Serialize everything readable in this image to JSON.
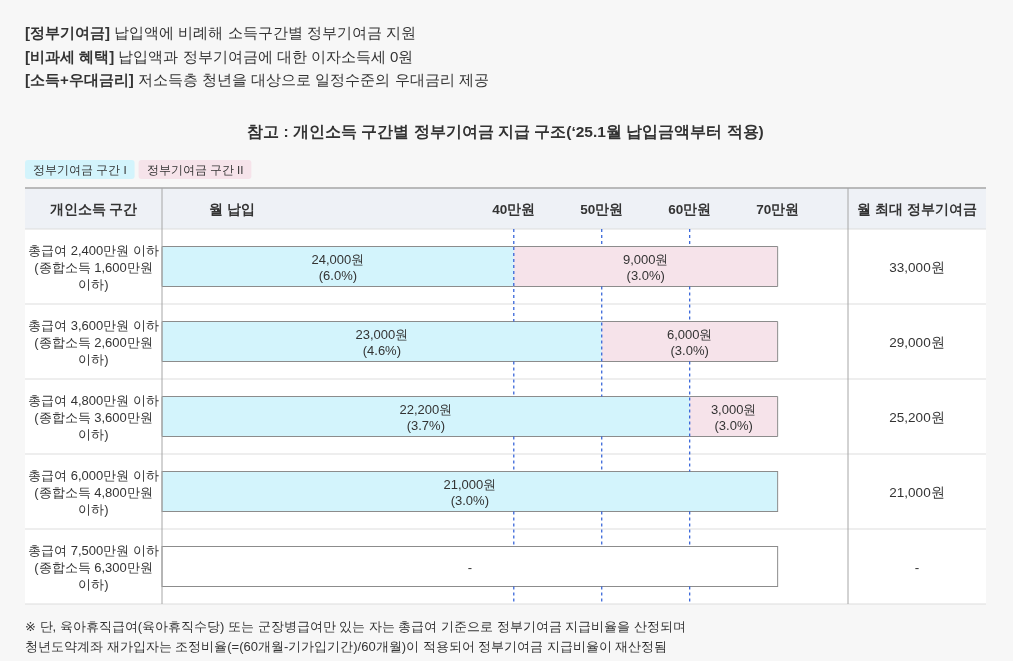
{
  "chart_data": {
    "type": "bar",
    "orientation": "horizontal",
    "stacked": true,
    "title": "참고 : 개인소득 구간별 정부기여금 지급 구조(‘25.1월 납입금액부터 적용)",
    "xlabel": "월 납입",
    "ylabel": "개인소득 구간",
    "categories": [
      "총급여 2,400만원 이하 (종합소득 1,600만원 이하)",
      "총급여 3,600만원 이하 (종합소득 2,600만원 이하)",
      "총급여 4,800만원 이하 (종합소득 3,600만원 이하)",
      "총급여 6,000만원 이하 (종합소득 4,800만원 이하)",
      "총급여 7,500만원 이하 (종합소득 6,300만원 이하)"
    ],
    "series": [
      {
        "name": "정부기여금 구간 I",
        "color": "#d3f4fc",
        "values": [
          40,
          50,
          60,
          70,
          null
        ]
      },
      {
        "name": "정부기여금 구간 II",
        "color": "#f6e3ea",
        "values": [
          30,
          20,
          10,
          null,
          null
        ]
      },
      {
        "color": "#ffffff",
        "values": [
          null,
          null,
          null,
          null,
          70
        ]
      }
    ],
    "xlim": [
      0,
      78
    ],
    "xticks": [
      {
        "value": 40,
        "label": "40만원"
      },
      {
        "value": 50,
        "label": "50만원"
      },
      {
        "value": 60,
        "label": "60만원"
      },
      {
        "value": 70,
        "label": "70만원"
      }
    ],
    "ref_lines": [
      {
        "axis": "x",
        "value": 40,
        "color": "#2a5bd7",
        "line_style": "dashed"
      },
      {
        "axis": "x",
        "value": 50,
        "color": "#2a5bd7",
        "line_style": "dashed"
      },
      {
        "axis": "x",
        "value": 60,
        "color": "#2a5bd7",
        "line_style": "dashed"
      }
    ],
    "legend": "top left",
    "annotations": [
      "**[정부기여금]** 납입액에 비례해 소득구간별 정부기여금 지원",
      "**[비과세 혜택]** 납입액과 정부기여금에 대한 이자소득세 0원",
      "**[소득+우대금리]** 저소득층 청년을 대상으로 일정수준의 우대금리 제공",
      "월 최대 정부기여금",
      "24,000원 (6.0%)",
      "9,000원 (3.0%)",
      "33,000원",
      "23,000원 (4.6%)",
      "6,000원 (3.0%)",
      "29,000원",
      "22,200원 (3.7%)",
      "3,000원 (3.0%)",
      "25,200원",
      "21,000원 (3.0%)",
      "21,000원",
      "-",
      "-",
      "※ 단, 육아휴직급여(육아휴직수당) 또는 군장병급여만 있는 자는 총급여 기준으로 정부기여금 지급비율을 산정되며",
      "청년도약계좌 재가입자는 조정비율(=(60개월-기가입기간)/60개월)이 적용되어 정부기여금 지급비율이 재산정됨"
    ]
  }
}
